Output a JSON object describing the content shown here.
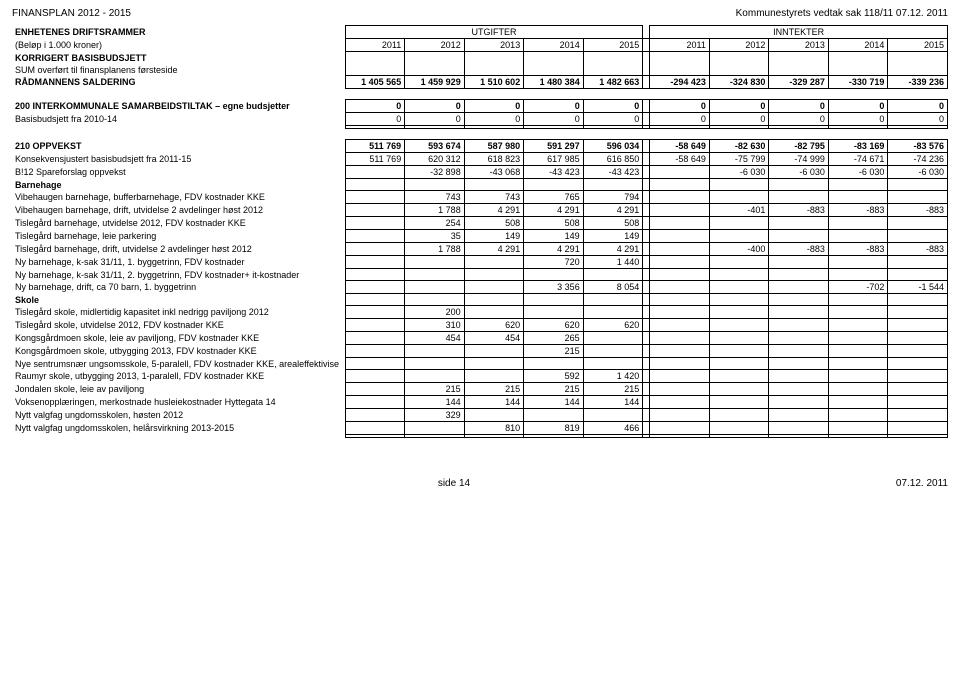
{
  "header": {
    "left": "FINANSPLAN 2012 - 2015",
    "right": "Kommunestyrets vedtak sak 118/11 07.12. 2011"
  },
  "columns": {
    "years_left": [
      "2011",
      "2012",
      "2013",
      "2014",
      "2015"
    ],
    "years_right": [
      "2011",
      "2012",
      "2013",
      "2014",
      "2015"
    ],
    "group_left": "UTGIFTER",
    "group_right": "INNTEKTER"
  },
  "top_labels": {
    "l1": "ENHETENES DRIFTSRAMMER",
    "l2": "(Beløp i 1.000 kroner)",
    "l3": "KORRIGERT BASISBUDSJETT",
    "l4": "SUM overført til finansplanens førsteside",
    "l5": "RÅDMANNENS SALDERING"
  },
  "radmannen": {
    "left": [
      "1 405 565",
      "1 459 929",
      "1 510 602",
      "1 480 384",
      "1 482 663"
    ],
    "right": [
      "-294 423",
      "-324 830",
      "-329 287",
      "-330 719",
      "-339 236"
    ]
  },
  "sec200": {
    "title": "200 INTERKOMMUNALE SAMARBEIDSTILTAK – egne budsjetter",
    "r1_label": "Basisbudsjett fra 2010-14",
    "zeros": [
      "0",
      "0",
      "0",
      "0",
      "0",
      "0",
      "0",
      "0",
      "0",
      "0"
    ]
  },
  "sec210": {
    "title": "210 OPPVEKST",
    "title_left": [
      "511 769",
      "593 674",
      "587 980",
      "591 297",
      "596 034"
    ],
    "title_right": [
      "-58 649",
      "-82 630",
      "-82 795",
      "-83 169",
      "-83 576"
    ],
    "r_konsek": "Konsekvensjustert basisbudsjett fra 2011-15",
    "konsek_left": [
      "511 769",
      "620 312",
      "618 823",
      "617 985",
      "616 850"
    ],
    "konsek_right": [
      "-58 649",
      "-75 799",
      "-74 999",
      "-74 671",
      "-74 236"
    ],
    "r_b12": "B!12 Spareforslag oppvekst",
    "b12_left": [
      "",
      "-32 898",
      "-43 068",
      "-43 423",
      "-43 423"
    ],
    "b12_right": [
      "",
      "-6 030",
      "-6 030",
      "-6 030",
      "-6 030"
    ],
    "r_barnehage": "Barnehage",
    "rows": [
      {
        "label": "Vibehaugen barnehage, bufferbarnehage, FDV kostnader KKE",
        "left": [
          "",
          "743",
          "743",
          "765",
          "794"
        ],
        "right": [
          "",
          "",
          "",
          "",
          ""
        ]
      },
      {
        "label": "Vibehaugen barnehage, drift, utvidelse 2 avdelinger høst 2012",
        "left": [
          "",
          "1 788",
          "4 291",
          "4 291",
          "4 291"
        ],
        "right": [
          "",
          "-401",
          "-883",
          "-883",
          "-883"
        ]
      },
      {
        "label": "Tislegård barnehage, utvidelse 2012, FDV kostnader KKE",
        "left": [
          "",
          "254",
          "508",
          "508",
          "508"
        ],
        "right": [
          "",
          "",
          "",
          "",
          ""
        ]
      },
      {
        "label": "Tislegård barnehage, leie parkering",
        "left": [
          "",
          "35",
          "149",
          "149",
          "149"
        ],
        "right": [
          "",
          "",
          "",
          "",
          ""
        ]
      },
      {
        "label": "Tislegård barnehage, drift, utvidelse 2 avdelinger høst 2012",
        "left": [
          "",
          "1 788",
          "4 291",
          "4 291",
          "4 291"
        ],
        "right": [
          "",
          "-400",
          "-883",
          "-883",
          "-883"
        ]
      },
      {
        "label": "Ny barnehage, k-sak 31/11, 1. byggetrinn, FDV kostnader",
        "left": [
          "",
          "",
          "",
          "720",
          "1 440"
        ],
        "right": [
          "",
          "",
          "",
          "",
          ""
        ]
      },
      {
        "label": "Ny barnehage, k-sak 31/11, 2. byggetrinn, FDV kostnader+ it-kostnader",
        "left": [
          "",
          "",
          "",
          "",
          ""
        ],
        "right": [
          "",
          "",
          "",
          "",
          ""
        ]
      },
      {
        "label": "Ny barnehage, drift, ca 70 barn, 1. byggetrinn",
        "left": [
          "",
          "",
          "",
          "3 356",
          "8 054"
        ],
        "right": [
          "",
          "",
          "",
          "-702",
          "-1 544"
        ]
      }
    ],
    "r_skole": "Skole",
    "skole_rows": [
      {
        "label": "Tislegård skole, midlertidig kapasitet inkl nedrigg paviljong 2012",
        "left": [
          "",
          "200",
          "",
          "",
          ""
        ],
        "right": [
          "",
          "",
          "",
          "",
          ""
        ]
      },
      {
        "label": "Tislegård skole, utvidelse 2012, FDV kostnader KKE",
        "left": [
          "",
          "310",
          "620",
          "620",
          "620"
        ],
        "right": [
          "",
          "",
          "",
          "",
          ""
        ]
      },
      {
        "label": "Kongsgårdmoen skole, leie av paviljong, FDV kostnader KKE",
        "left": [
          "",
          "454",
          "454",
          "265",
          ""
        ],
        "right": [
          "",
          "",
          "",
          "",
          ""
        ]
      },
      {
        "label": "Kongsgårdmoen skole, utbygging 2013, FDV kostnader KKE",
        "left": [
          "",
          "",
          "",
          "215",
          ""
        ],
        "right": [
          "",
          "",
          "",
          "",
          ""
        ]
      },
      {
        "label": "Nye sentrumsnær ungsomsskole, 5-paralell, FDV kostnader KKE, arealeffektivise",
        "left": [
          "",
          "",
          "",
          "",
          ""
        ],
        "right": [
          "",
          "",
          "",
          "",
          ""
        ]
      },
      {
        "label": "Raumyr skole, utbygging 2013, 1-paralell, FDV kostnader KKE",
        "left": [
          "",
          "",
          "",
          "592",
          "1 420"
        ],
        "right": [
          "",
          "",
          "",
          "",
          ""
        ]
      },
      {
        "label": "Jondalen skole, leie av paviljong",
        "left": [
          "",
          "215",
          "215",
          "215",
          "215"
        ],
        "right": [
          "",
          "",
          "",
          "",
          ""
        ]
      },
      {
        "label": "Voksenopplæringen, merkostnade husleiekostnader Hyttegata 14",
        "left": [
          "",
          "144",
          "144",
          "144",
          "144"
        ],
        "right": [
          "",
          "",
          "",
          "",
          ""
        ]
      },
      {
        "label": "Nytt valgfag ungdomsskolen, høsten 2012",
        "left": [
          "",
          "329",
          "",
          "",
          ""
        ],
        "right": [
          "",
          "",
          "",
          "",
          ""
        ]
      },
      {
        "label": "Nytt valgfag ungdomsskolen, helårsvirkning 2013-2015",
        "left": [
          "",
          "",
          "810",
          "819",
          "466"
        ],
        "right": [
          "",
          "",
          "",
          "",
          ""
        ]
      }
    ]
  },
  "footer": {
    "center": "side 14",
    "right": "07.12. 2011"
  }
}
